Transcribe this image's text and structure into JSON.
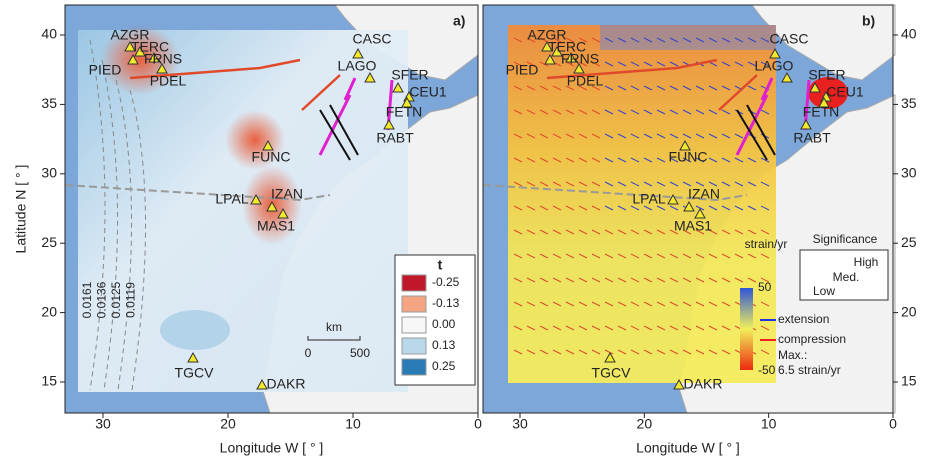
{
  "panels": [
    {
      "label": "a)",
      "xlabel": "Longitude W [ ° ]",
      "xticks": [
        30,
        20,
        10,
        0
      ]
    },
    {
      "label": "b)",
      "xlabel": "Longitude W [ ° ]",
      "xticks": [
        30,
        20,
        10,
        0
      ]
    }
  ],
  "ylabel": "Latitude N [ ° ]",
  "yticks": [
    15,
    20,
    25,
    30,
    35,
    40
  ],
  "stations": [
    "AZGR",
    "TERC",
    "FRNS",
    "PIED",
    "PDEL",
    "CASC",
    "LAGO",
    "SFER",
    "CEU1",
    "FETN",
    "RABT",
    "FUNC",
    "LPAL",
    "IZAN",
    "MAS1",
    "TGCV",
    "DAKR"
  ],
  "contour_labels": [
    "0.0161",
    "0.0136",
    "0.0125",
    "0.0119"
  ],
  "legend_t": {
    "title": "t",
    "entries": [
      "-0.25",
      "-0.13",
      "0.00",
      "0.13",
      "0.25"
    ]
  },
  "scale_bar": {
    "unit": "km",
    "ticks": [
      "0",
      "500"
    ]
  },
  "strain_legend": {
    "title": "strain/yr",
    "top": "50",
    "bottom": "-50",
    "extension": "extension",
    "compression": "compression",
    "max_label": "Max.:",
    "max_value": "6.5 strain/yr"
  },
  "significance": {
    "title": "Significance",
    "levels": [
      "High",
      "Med.",
      "Low"
    ]
  }
}
